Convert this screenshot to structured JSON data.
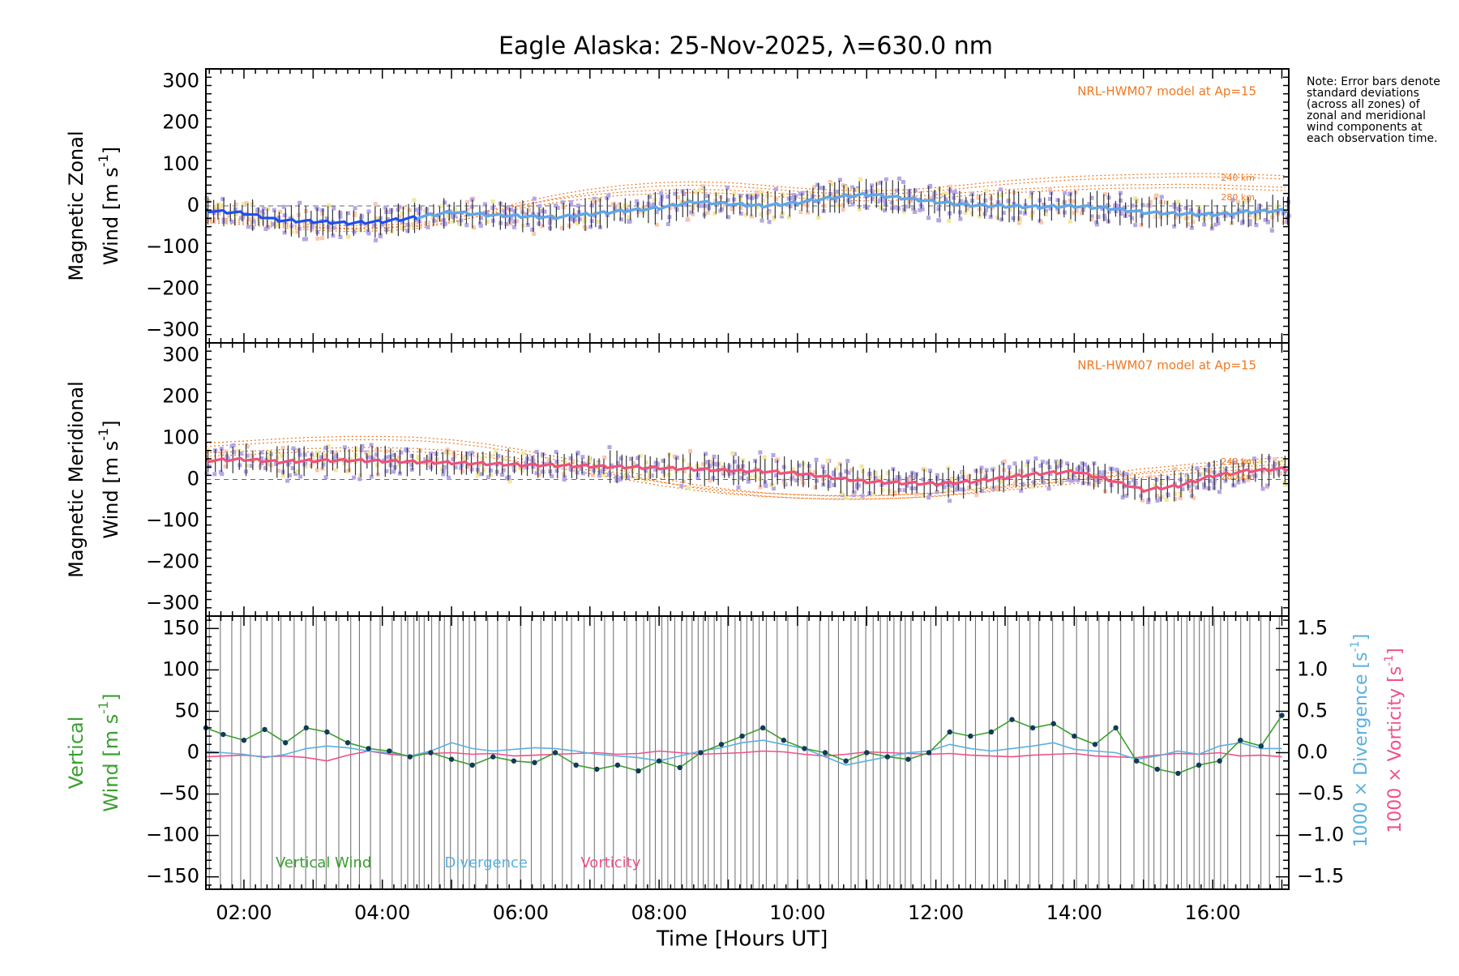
{
  "title": "Eagle Alaska: 25-Nov-2025, λ=630.0 nm",
  "note": "Note: Error bars denote standard deviations (across all zones) of zonal and meridional wind components at each observation time.",
  "colors": {
    "zonal": "#1f4ef0",
    "zonal_light": "#5fa8e8",
    "meridional": "#f0507a",
    "model": "#f07820",
    "vertical": "#3aa030",
    "divergence": "#5ab0e0",
    "vorticity": "#f0508c",
    "scatter": "#b4a6e8",
    "errorbar": "#333333",
    "zone_light": "#f8c8b0",
    "zone_yellow": "#f0e8a0"
  },
  "chart_data": [
    {
      "id": "zonal",
      "type": "line",
      "ylabel_line1": "Magnetic Zonal",
      "ylabel_line2": "Wind [m s",
      "ylabel_sup": "-1",
      "ylabel_close": "]",
      "ylim": [
        -330,
        330
      ],
      "yticks": [
        -300,
        -200,
        -100,
        0,
        100,
        200,
        300
      ],
      "model_label": "NRL-HWM07 model at Ap=15",
      "model_altitudes": [
        "240 km",
        "280 km"
      ],
      "x": [
        1.45,
        2.0,
        2.5,
        3.0,
        3.5,
        4.0,
        4.5,
        5.0,
        5.5,
        6.0,
        6.5,
        7.0,
        7.5,
        8.0,
        8.5,
        9.0,
        9.5,
        10.0,
        10.5,
        11.0,
        11.5,
        12.0,
        12.5,
        13.0,
        13.5,
        14.0,
        14.5,
        15.0,
        15.5,
        16.0,
        16.5,
        17.0
      ],
      "series": [
        {
          "name": "Zonal wind",
          "values": [
            -12,
            -18,
            -35,
            -38,
            -42,
            -38,
            -28,
            -15,
            -22,
            -25,
            -28,
            -20,
            -12,
            -5,
            10,
            5,
            0,
            8,
            20,
            28,
            20,
            10,
            2,
            0,
            -2,
            0,
            -5,
            -15,
            -18,
            -20,
            -15,
            -12
          ]
        },
        {
          "name": "Model 240 km",
          "values": [
            -40,
            -45,
            -52,
            -58,
            -62,
            -60,
            -55,
            -40,
            -20,
            0,
            18,
            32,
            42,
            48,
            50,
            48,
            42,
            35,
            30,
            28,
            30,
            36,
            44,
            52,
            58,
            63,
            66,
            68,
            70,
            70,
            68,
            65
          ]
        },
        {
          "name": "Model 280 km",
          "values": [
            -28,
            -33,
            -40,
            -45,
            -48,
            -46,
            -42,
            -30,
            -14,
            2,
            16,
            26,
            34,
            38,
            40,
            38,
            33,
            27,
            22,
            20,
            22,
            27,
            33,
            39,
            43,
            47,
            50,
            51,
            52,
            51,
            48,
            45
          ]
        }
      ]
    },
    {
      "id": "meridional",
      "type": "line",
      "ylabel_line1": "Magnetic Meridional",
      "ylabel_line2": "Wind [m s",
      "ylabel_sup": "-1",
      "ylabel_close": "]",
      "ylim": [
        -330,
        330
      ],
      "yticks": [
        -300,
        -200,
        -100,
        0,
        100,
        200,
        300
      ],
      "model_label": "NRL-HWM07 model at Ap=15",
      "model_altitudes": [
        "240 km",
        "280 km"
      ],
      "x": [
        1.45,
        2.0,
        2.5,
        3.0,
        3.5,
        4.0,
        4.5,
        5.0,
        5.5,
        6.0,
        6.5,
        7.0,
        7.5,
        8.0,
        8.5,
        9.0,
        9.5,
        10.0,
        10.5,
        11.0,
        11.5,
        12.0,
        12.5,
        13.0,
        13.5,
        14.0,
        14.5,
        15.0,
        15.5,
        16.0,
        16.5,
        17.0
      ],
      "series": [
        {
          "name": "Meridional wind",
          "values": [
            45,
            48,
            42,
            45,
            46,
            44,
            42,
            40,
            38,
            35,
            34,
            32,
            30,
            28,
            25,
            22,
            20,
            15,
            5,
            -5,
            -8,
            -10,
            -5,
            5,
            15,
            20,
            0,
            -25,
            -15,
            10,
            20,
            25
          ]
        },
        {
          "name": "Model 240 km",
          "values": [
            80,
            85,
            90,
            94,
            96,
            96,
            94,
            88,
            78,
            64,
            48,
            30,
            12,
            -5,
            -20,
            -32,
            -40,
            -45,
            -48,
            -48,
            -45,
            -40,
            -32,
            -22,
            -12,
            -2,
            8,
            18,
            26,
            34,
            40,
            45
          ]
        },
        {
          "name": "Model 280 km",
          "values": [
            64,
            68,
            72,
            75,
            77,
            77,
            75,
            70,
            62,
            50,
            37,
            22,
            8,
            -6,
            -18,
            -27,
            -33,
            -37,
            -39,
            -39,
            -37,
            -33,
            -26,
            -18,
            -10,
            -2,
            6,
            14,
            21,
            27,
            32,
            36
          ]
        }
      ]
    },
    {
      "id": "vertical",
      "type": "line",
      "ylabel_line1": "Vertical",
      "ylabel_line2": "Wind [m s",
      "ylabel_sup": "-1",
      "ylabel_close": "]",
      "ylim": [
        -165,
        165
      ],
      "yticks": [
        -150,
        -100,
        -50,
        0,
        50,
        100,
        150
      ],
      "y2lim": [
        -1.65,
        1.65
      ],
      "y2ticks": [
        -1.5,
        -1.0,
        -0.5,
        0.0,
        0.5,
        1.0,
        1.5
      ],
      "y2label_div": "1000 × Divergence [s",
      "y2label_vort": "1000 × Vorticity [s",
      "y2label_sup": "-1",
      "y2label_close": "]",
      "xlim": [
        1.45,
        17.1
      ],
      "xticks": [
        "02:00",
        "04:00",
        "06:00",
        "08:00",
        "10:00",
        "12:00",
        "14:00",
        "16:00"
      ],
      "xtick_values": [
        2,
        4,
        6,
        8,
        10,
        12,
        14,
        16
      ],
      "xlabel": "Time [Hours UT]",
      "legend": [
        "Vertical Wind",
        "Divergence",
        "Vorticity"
      ],
      "x": [
        1.45,
        1.7,
        2.0,
        2.3,
        2.6,
        2.9,
        3.2,
        3.5,
        3.8,
        4.1,
        4.4,
        4.7,
        5.0,
        5.3,
        5.6,
        5.9,
        6.2,
        6.5,
        6.8,
        7.1,
        7.4,
        7.7,
        8.0,
        8.3,
        8.6,
        8.9,
        9.2,
        9.5,
        9.8,
        10.1,
        10.4,
        10.7,
        11.0,
        11.3,
        11.6,
        11.9,
        12.2,
        12.5,
        12.8,
        13.1,
        13.4,
        13.7,
        14.0,
        14.3,
        14.6,
        14.9,
        15.2,
        15.5,
        15.8,
        16.1,
        16.4,
        16.7,
        17.0
      ],
      "series": [
        {
          "name": "Vertical Wind",
          "values": [
            30,
            22,
            15,
            28,
            12,
            30,
            25,
            12,
            5,
            2,
            -5,
            0,
            -8,
            -15,
            -5,
            -10,
            -12,
            0,
            -15,
            -20,
            -15,
            -22,
            -10,
            -18,
            0,
            10,
            20,
            30,
            15,
            5,
            0,
            -10,
            0,
            -5,
            -8,
            0,
            25,
            20,
            25,
            40,
            30,
            35,
            20,
            10,
            30,
            -10,
            -20,
            -25,
            -15,
            -10,
            15,
            8,
            45
          ]
        },
        {
          "name": "Divergence",
          "values": [
            0.02,
            0.0,
            -0.02,
            -0.06,
            -0.02,
            0.05,
            0.08,
            0.06,
            0.02,
            0.0,
            -0.04,
            0.02,
            0.12,
            0.05,
            0.02,
            0.04,
            0.06,
            0.05,
            0.02,
            -0.02,
            -0.04,
            -0.06,
            -0.1,
            -0.04,
            0.02,
            0.06,
            0.12,
            0.15,
            0.1,
            0.05,
            -0.05,
            -0.15,
            -0.1,
            -0.05,
            0.0,
            0.02,
            0.1,
            0.05,
            0.02,
            0.05,
            0.08,
            0.12,
            0.04,
            0.02,
            0.0,
            -0.08,
            -0.04,
            0.02,
            -0.02,
            0.08,
            0.12,
            0.05,
            0.05
          ]
        },
        {
          "name": "Vorticity",
          "values": [
            -0.05,
            -0.04,
            -0.03,
            -0.05,
            -0.04,
            -0.06,
            -0.1,
            -0.03,
            0.02,
            -0.02,
            -0.04,
            -0.01,
            0.0,
            -0.02,
            -0.01,
            -0.04,
            -0.03,
            -0.02,
            -0.01,
            0.0,
            -0.02,
            -0.01,
            0.02,
            0.0,
            -0.02,
            -0.01,
            0.0,
            0.02,
            0.01,
            -0.02,
            -0.04,
            -0.02,
            0.01,
            0.0,
            -0.01,
            -0.02,
            -0.01,
            -0.03,
            -0.04,
            -0.05,
            -0.03,
            -0.02,
            -0.01,
            -0.04,
            -0.05,
            -0.06,
            -0.03,
            -0.01,
            -0.02,
            0.0,
            -0.04,
            -0.03,
            -0.05
          ]
        }
      ]
    }
  ]
}
